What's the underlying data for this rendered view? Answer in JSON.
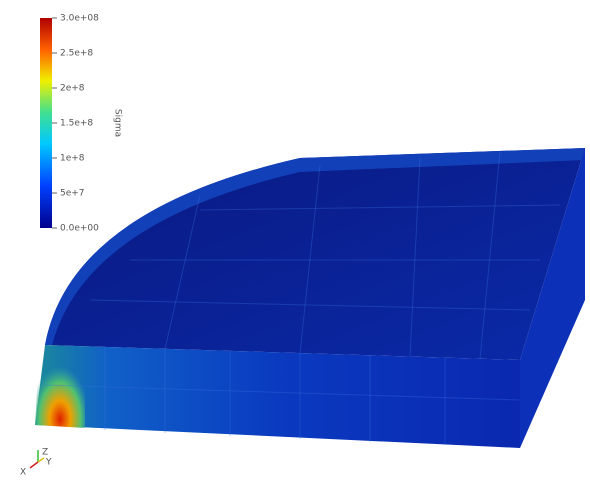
{
  "colorbar": {
    "title": "Sigma",
    "range": [
      0,
      300000000
    ],
    "ticks": [
      {
        "value": 300000000,
        "label": "3.0e+08"
      },
      {
        "value": 250000000,
        "label": "2.5e+8"
      },
      {
        "value": 200000000,
        "label": "2e+8"
      },
      {
        "value": 150000000,
        "label": "1.5e+8"
      },
      {
        "value": 100000000,
        "label": "1e+8"
      },
      {
        "value": 50000000,
        "label": "5e+7"
      },
      {
        "value": 0,
        "label": "0.0e+00"
      }
    ]
  },
  "axes": {
    "z": "Z",
    "x": "X",
    "y": "Y"
  }
}
